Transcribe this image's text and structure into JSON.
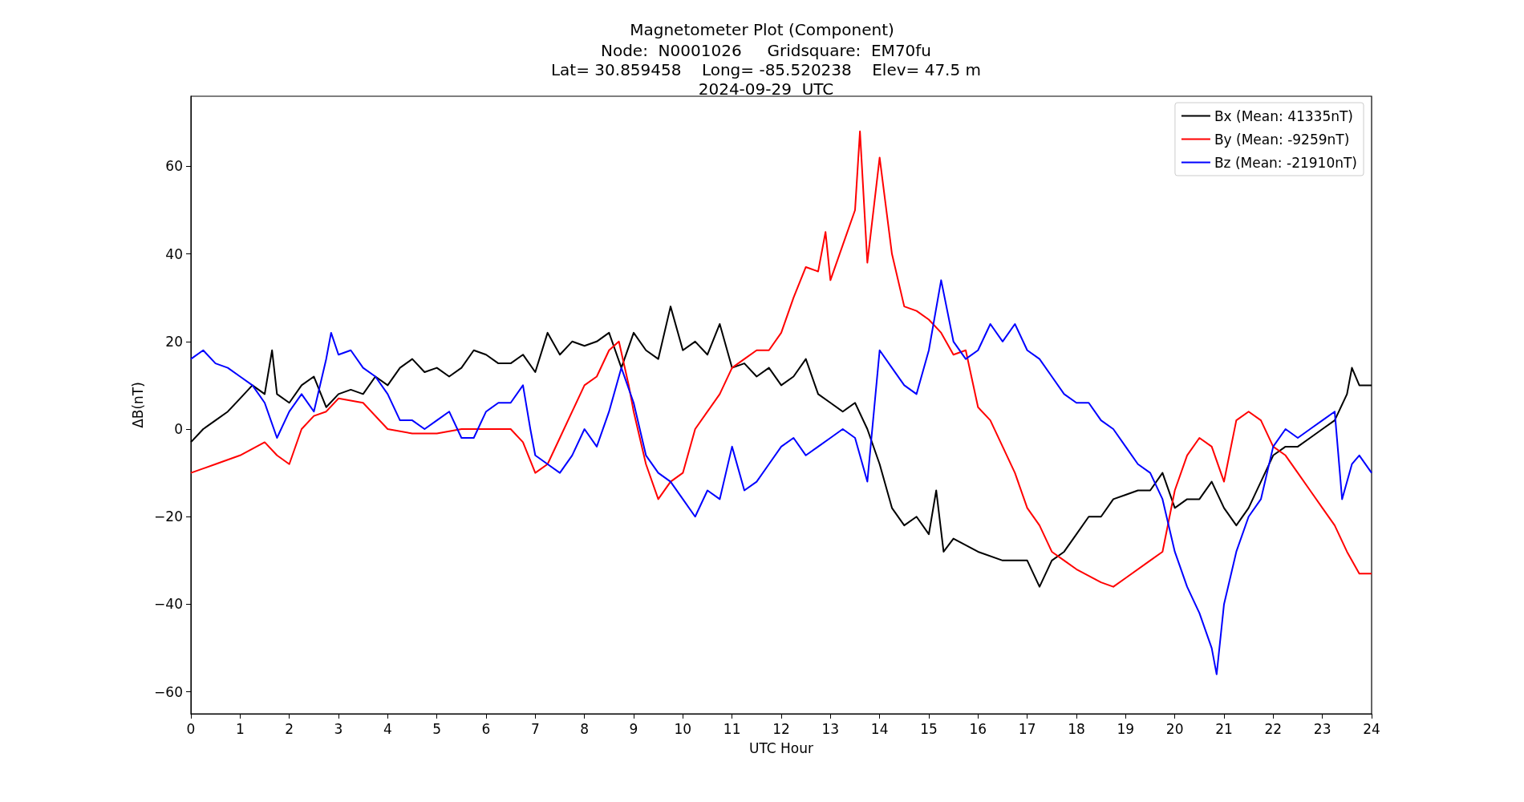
{
  "chart_data": {
    "type": "line",
    "title": "Magnetometer Plot (Component)",
    "subtitle": "Node:  N0001026     Gridsquare:  EM70fu\nLat= 30.859458    Long= -85.520238    Elev= 47.5 m\n2024-09-29  UTC",
    "xlabel": "UTC Hour",
    "ylabel": "ΔB(nT)",
    "legend": "top right",
    "grid": false,
    "marker": "none",
    "line_style": "solid",
    "xlim": [
      0,
      24
    ],
    "xticks": [
      0,
      1,
      2,
      3,
      4,
      5,
      6,
      7,
      8,
      9,
      10,
      11,
      12,
      13,
      14,
      15,
      16,
      17,
      18,
      19,
      20,
      21,
      22,
      23,
      24
    ],
    "ylim": [
      -65,
      76
    ],
    "yticks": [
      {
        "value": -60,
        "label": "−60"
      },
      {
        "value": -40,
        "label": "−40"
      },
      {
        "value": -20,
        "label": "−20"
      },
      0,
      20,
      40,
      60
    ],
    "series": [
      {
        "name": "Bx (Mean: 41335nT)",
        "color": "#000000",
        "x": [
          0,
          0.25,
          0.5,
          0.75,
          1,
          1.25,
          1.5,
          1.65,
          1.75,
          2,
          2.25,
          2.5,
          2.75,
          3,
          3.25,
          3.5,
          3.75,
          4,
          4.25,
          4.5,
          4.75,
          5,
          5.25,
          5.5,
          5.75,
          6,
          6.25,
          6.5,
          6.75,
          7,
          7.25,
          7.5,
          7.75,
          8,
          8.25,
          8.5,
          8.75,
          9,
          9.25,
          9.5,
          9.75,
          10,
          10.25,
          10.5,
          10.75,
          11,
          11.25,
          11.5,
          11.75,
          12,
          12.25,
          12.5,
          12.75,
          13,
          13.25,
          13.5,
          13.75,
          14,
          14.25,
          14.5,
          14.75,
          15,
          15.15,
          15.3,
          15.5,
          16,
          16.5,
          17,
          17.25,
          17.5,
          17.75,
          18,
          18.25,
          18.5,
          18.75,
          19,
          19.25,
          19.5,
          19.75,
          20,
          20.25,
          20.5,
          20.75,
          21,
          21.25,
          21.5,
          21.75,
          22,
          22.25,
          22.5,
          22.75,
          23,
          23.25,
          23.5,
          23.6,
          23.75,
          24
        ],
        "values": [
          -3,
          0,
          2,
          4,
          7,
          10,
          8,
          18,
          8,
          6,
          10,
          12,
          5,
          8,
          9,
          8,
          12,
          10,
          14,
          16,
          13,
          14,
          12,
          14,
          18,
          17,
          15,
          15,
          17,
          13,
          22,
          17,
          20,
          19,
          20,
          22,
          14,
          22,
          18,
          16,
          28,
          18,
          20,
          17,
          24,
          14,
          15,
          12,
          14,
          10,
          12,
          16,
          8,
          6,
          4,
          6,
          0,
          -8,
          -18,
          -22,
          -20,
          -24,
          -14,
          -28,
          -25,
          -28,
          -30,
          -30,
          -36,
          -30,
          -28,
          -24,
          -20,
          -20,
          -16,
          -15,
          -14,
          -14,
          -10,
          -18,
          -16,
          -16,
          -12,
          -18,
          -22,
          -18,
          -12,
          -6,
          -4,
          -4,
          -2,
          0,
          2,
          8,
          14,
          10,
          10
        ]
      },
      {
        "name": "By (Mean: -9259nT)",
        "color": "#ff0000",
        "x": [
          0,
          0.5,
          1,
          1.5,
          1.75,
          2,
          2.25,
          2.5,
          2.75,
          3,
          3.5,
          4,
          4.5,
          5,
          5.5,
          6,
          6.5,
          6.75,
          7,
          7.25,
          7.5,
          7.75,
          8,
          8.25,
          8.5,
          8.7,
          8.9,
          9,
          9.25,
          9.5,
          9.75,
          10,
          10.25,
          10.5,
          10.75,
          11,
          11.25,
          11.5,
          11.75,
          12,
          12.25,
          12.5,
          12.75,
          12.9,
          13,
          13.25,
          13.5,
          13.6,
          13.75,
          14,
          14.25,
          14.5,
          14.75,
          15,
          15.25,
          15.5,
          15.75,
          16,
          16.25,
          16.5,
          16.75,
          17,
          17.25,
          17.5,
          17.75,
          18,
          18.5,
          18.75,
          19,
          19.5,
          19.75,
          20,
          20.25,
          20.5,
          20.75,
          21,
          21.25,
          21.5,
          21.75,
          22,
          22.25,
          22.5,
          22.75,
          23,
          23.25,
          23.5,
          23.75,
          24
        ],
        "values": [
          -10,
          -8,
          -6,
          -3,
          -6,
          -8,
          0,
          3,
          4,
          7,
          6,
          0,
          -1,
          -1,
          0,
          0,
          0,
          -3,
          -10,
          -8,
          -2,
          4,
          10,
          12,
          18,
          20,
          10,
          4,
          -8,
          -16,
          -12,
          -10,
          0,
          4,
          8,
          14,
          16,
          18,
          18,
          22,
          30,
          37,
          36,
          45,
          34,
          42,
          50,
          68,
          38,
          62,
          40,
          28,
          27,
          25,
          22,
          17,
          18,
          5,
          2,
          -4,
          -10,
          -18,
          -22,
          -28,
          -30,
          -32,
          -35,
          -36,
          -34,
          -30,
          -28,
          -14,
          -6,
          -2,
          -4,
          -12,
          2,
          4,
          2,
          -4,
          -6,
          -10,
          -14,
          -18,
          -22,
          -28,
          -33,
          -33
        ]
      },
      {
        "name": "Bz (Mean: -21910nT)",
        "color": "#0000ff",
        "x": [
          0,
          0.25,
          0.5,
          0.75,
          1,
          1.25,
          1.5,
          1.75,
          2,
          2.25,
          2.5,
          2.75,
          2.85,
          3,
          3.25,
          3.5,
          3.75,
          4,
          4.25,
          4.5,
          4.75,
          5,
          5.25,
          5.5,
          5.75,
          6,
          6.25,
          6.5,
          6.75,
          6.9,
          7,
          7.25,
          7.5,
          7.75,
          8,
          8.25,
          8.5,
          8.75,
          9,
          9.25,
          9.5,
          9.75,
          10,
          10.25,
          10.5,
          10.75,
          11,
          11.25,
          11.5,
          11.75,
          12,
          12.25,
          12.5,
          12.75,
          13,
          13.25,
          13.5,
          13.75,
          14,
          14.25,
          14.5,
          14.75,
          15,
          15.25,
          15.5,
          15.75,
          16,
          16.25,
          16.5,
          16.75,
          17,
          17.25,
          17.5,
          17.75,
          18,
          18.25,
          18.5,
          18.75,
          19,
          19.25,
          19.5,
          19.75,
          20,
          20.25,
          20.5,
          20.75,
          20.85,
          21,
          21.25,
          21.5,
          21.75,
          22,
          22.25,
          22.5,
          22.75,
          23,
          23.25,
          23.4,
          23.6,
          23.75,
          24
        ],
        "values": [
          16,
          18,
          15,
          14,
          12,
          10,
          6,
          -2,
          4,
          8,
          4,
          16,
          22,
          17,
          18,
          14,
          12,
          8,
          2,
          2,
          0,
          2,
          4,
          -2,
          -2,
          4,
          6,
          6,
          10,
          0,
          -6,
          -8,
          -10,
          -6,
          0,
          -4,
          4,
          14,
          6,
          -6,
          -10,
          -12,
          -16,
          -20,
          -14,
          -16,
          -4,
          -14,
          -12,
          -8,
          -4,
          -2,
          -6,
          -4,
          -2,
          0,
          -2,
          -12,
          18,
          14,
          10,
          8,
          18,
          34,
          20,
          16,
          18,
          24,
          20,
          24,
          18,
          16,
          12,
          8,
          6,
          6,
          2,
          0,
          -4,
          -8,
          -10,
          -16,
          -28,
          -36,
          -42,
          -50,
          -56,
          -40,
          -28,
          -20,
          -16,
          -4,
          0,
          -2,
          0,
          2,
          4,
          -16,
          -8,
          -6,
          -10
        ]
      }
    ]
  }
}
